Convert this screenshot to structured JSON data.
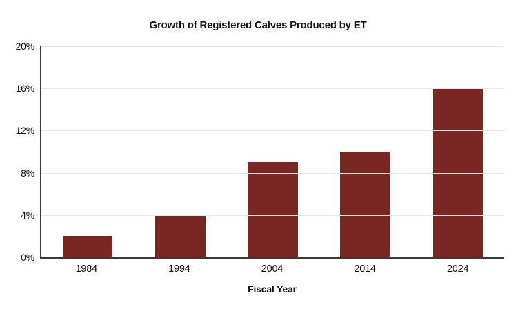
{
  "chart_data": {
    "type": "bar",
    "title": "Growth of Registered Calves Produced by ET",
    "xlabel": "Fiscal Year",
    "ylabel": "",
    "categories": [
      "1984",
      "1994",
      "2004",
      "2014",
      "2024"
    ],
    "values": [
      2,
      4,
      9,
      10,
      16
    ],
    "ylim": [
      0,
      20
    ],
    "ytick_interval": 4,
    "ytick_labels": [
      "0%",
      "4%",
      "8%",
      "12%",
      "16%",
      "20%"
    ],
    "grid": "horizontal-only",
    "legend": "none",
    "colors": {
      "bar": "#7A2623",
      "axis": "#3A3A3A",
      "gridline": "#E7E7E7",
      "text": "#111111",
      "background": "#FFFFFF"
    }
  }
}
